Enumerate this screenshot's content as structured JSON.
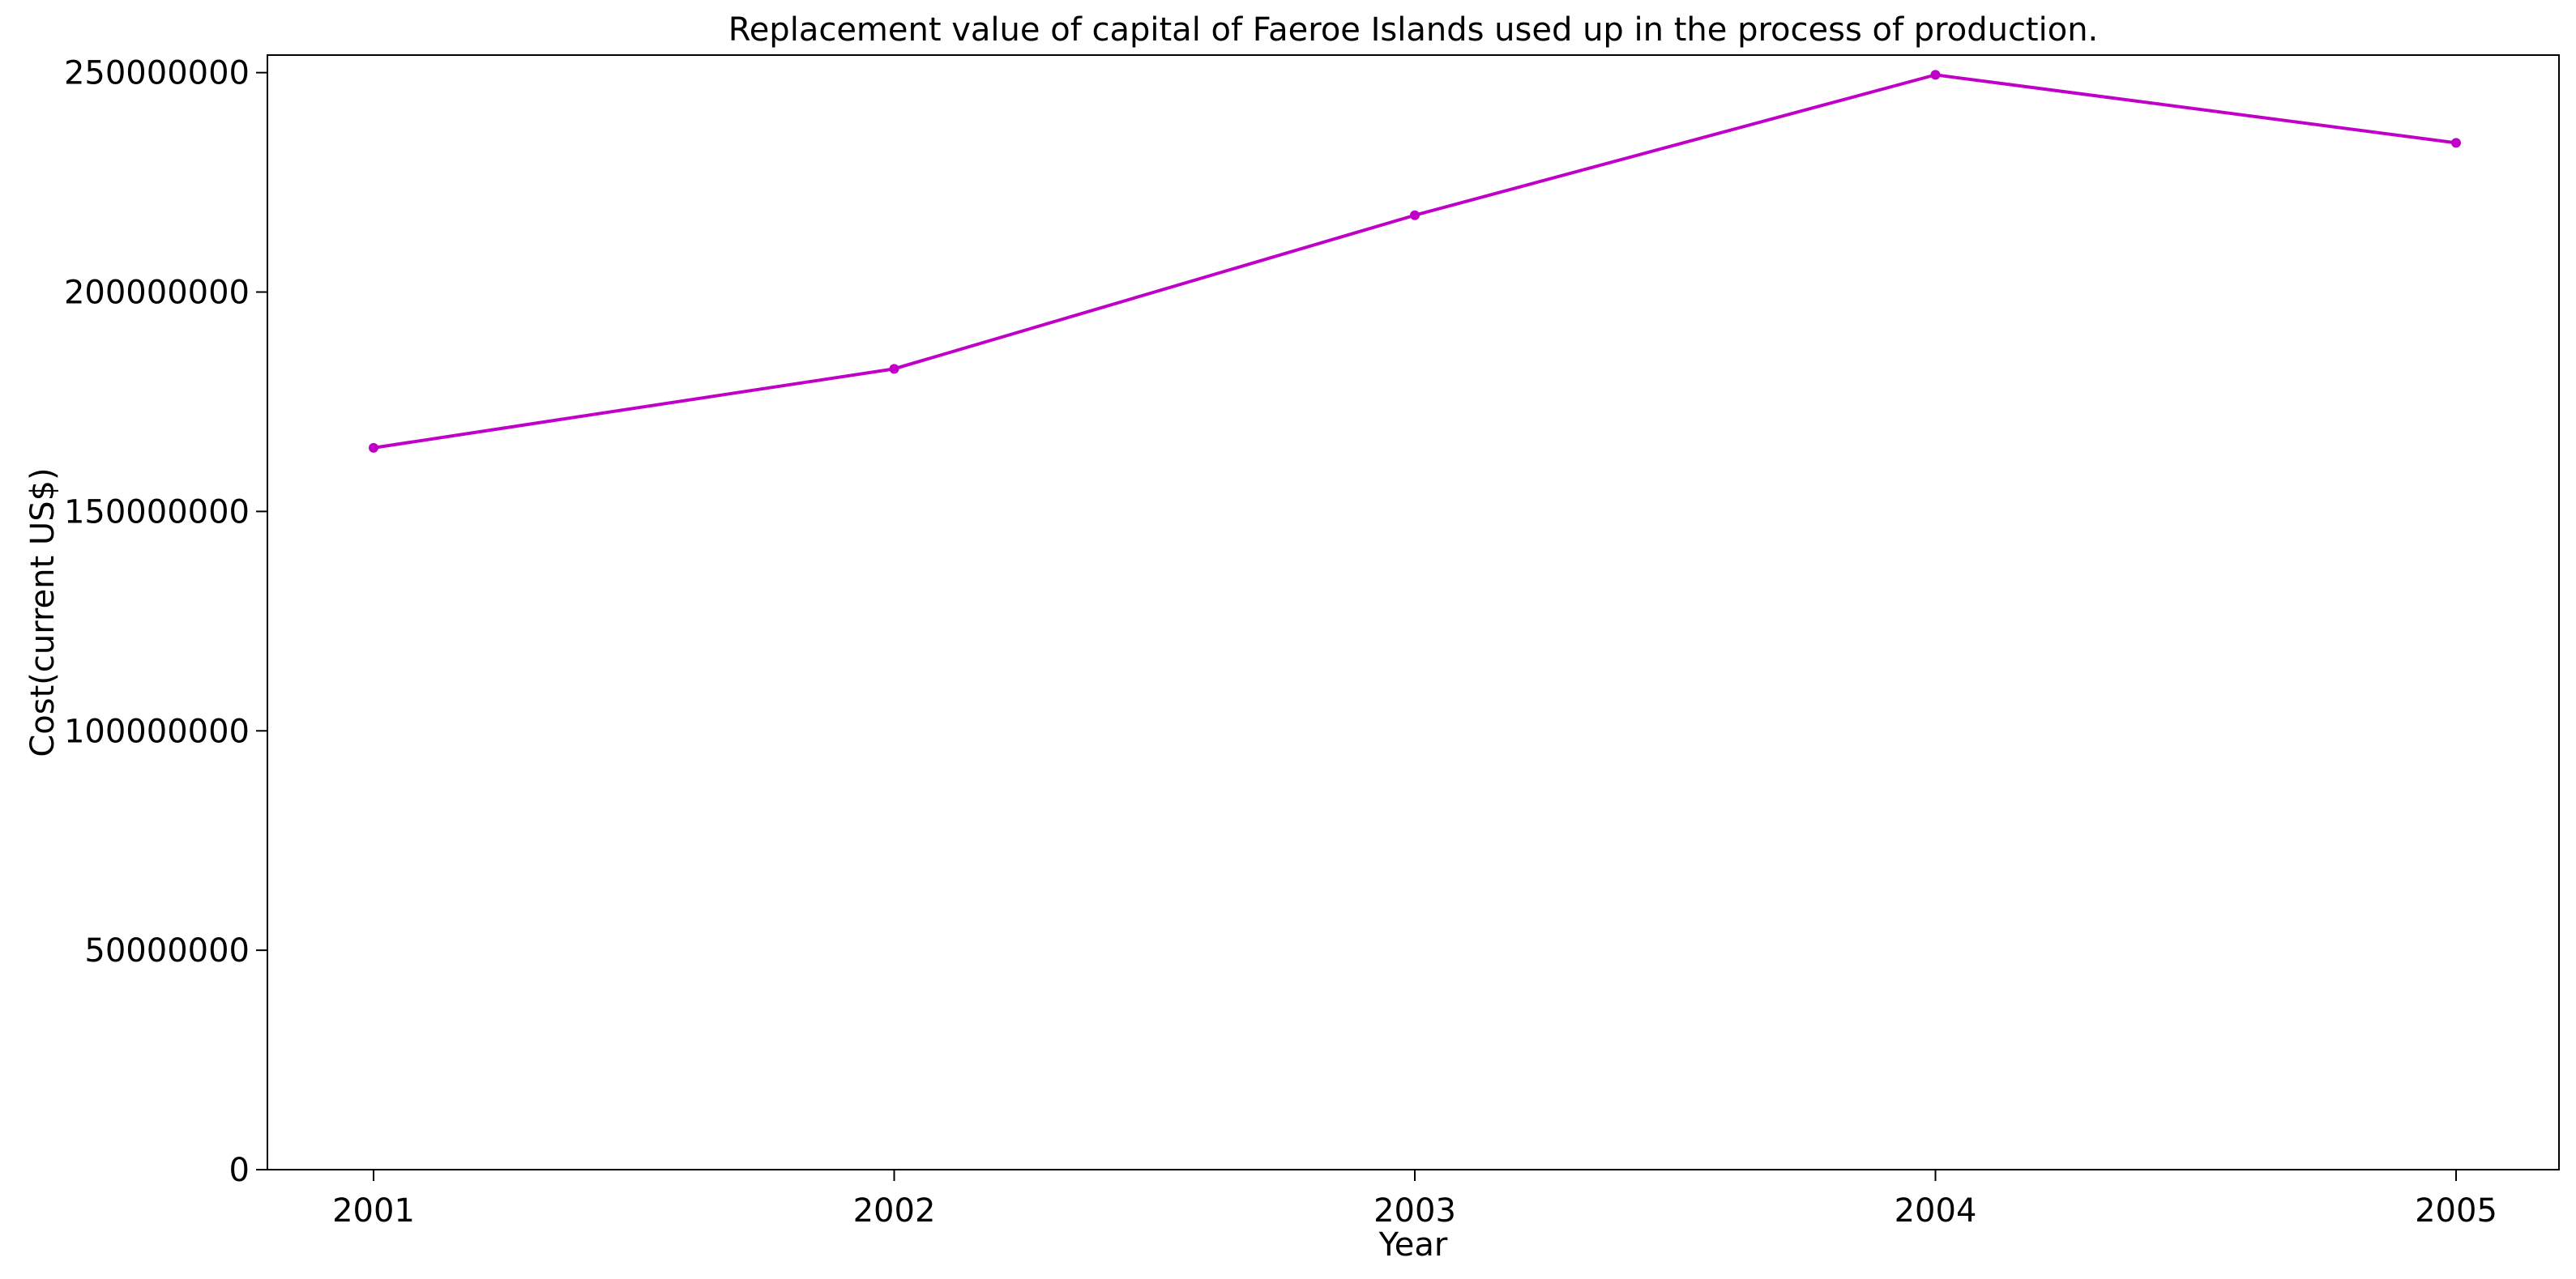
{
  "chart_data": {
    "type": "line",
    "title": "Replacement value of capital of Faeroe Islands used up in the process of production.",
    "xlabel": "Year",
    "ylabel": "Cost(current US$)",
    "categories": [
      "2001",
      "2002",
      "2003",
      "2004",
      "2005"
    ],
    "series": [
      {
        "name": "Cost(current US$)",
        "color": "#c000c8",
        "values": [
          164500000,
          182500000,
          217500000,
          249500000,
          234000000
        ]
      }
    ],
    "ylim": [
      0,
      254000000
    ],
    "yticks": [
      0,
      50000000,
      100000000,
      150000000,
      200000000,
      250000000
    ],
    "ytick_labels": [
      "0",
      "50000000",
      "100000000",
      "150000000",
      "200000000",
      "250000000"
    ],
    "grid": false,
    "legend": "none"
  }
}
